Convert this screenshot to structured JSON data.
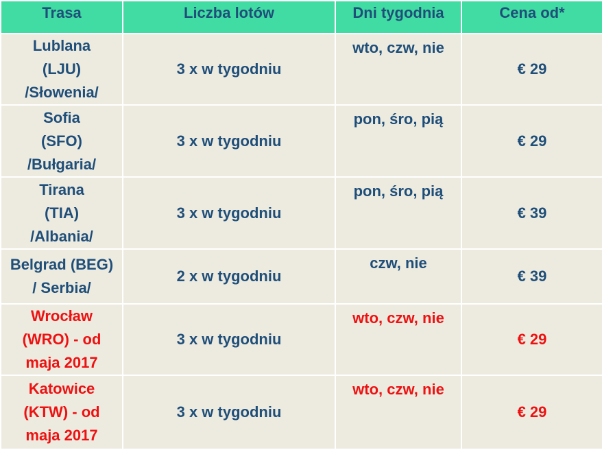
{
  "table": {
    "columns": [
      {
        "label": "Trasa"
      },
      {
        "label": "Liczba lotów"
      },
      {
        "label": "Dni tygodnia"
      },
      {
        "label": "Cena od*"
      }
    ],
    "rows": [
      {
        "route": [
          "Lublana",
          "(LJU)",
          "/Słowenia/"
        ],
        "flights": "3 x w tygodniu",
        "days": "wto, czw, nie",
        "price": "€ 29",
        "highlight": false
      },
      {
        "route": [
          "Sofia",
          "(SFO)",
          "/Bułgaria/"
        ],
        "flights": "3 x w tygodniu",
        "days": "pon, śro, pią",
        "price": "€ 29",
        "highlight": false
      },
      {
        "route": [
          "Tirana",
          "(TIA)",
          "/Albania/"
        ],
        "flights": "3 x w tygodniu",
        "days": "pon, śro, pią",
        "price": "€ 39",
        "highlight": false
      },
      {
        "route": [
          "Belgrad (BEG)",
          "/ Serbia/"
        ],
        "flights": "2 x w tygodniu",
        "days": "czw, nie",
        "price": "€ 39",
        "highlight": false
      },
      {
        "route": [
          "Wrocław",
          "(WRO) - od",
          "maja 2017"
        ],
        "flights": "3 x w tygodniu",
        "days": "wto, czw, nie",
        "price": "€ 29",
        "highlight": true
      },
      {
        "route": [
          "Katowice",
          "(KTW) - od",
          "maja 2017"
        ],
        "flights": "3 x w tygodniu",
        "days": "wto, czw, nie",
        "price": "€ 29",
        "highlight": true
      }
    ],
    "colors": {
      "header_bg": "#41DCA3",
      "body_bg": "#EDEBE0",
      "text_blue": "#1F4E79",
      "text_red": "#EE1111",
      "divider": "#FFFFFF"
    }
  }
}
